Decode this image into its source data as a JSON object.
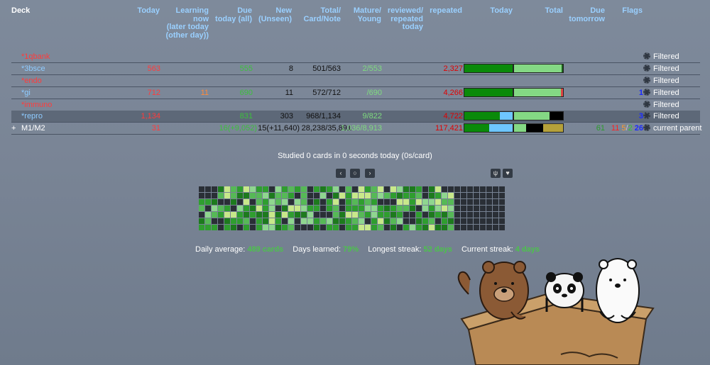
{
  "headers": {
    "deck": "Deck",
    "today": "Today",
    "learning": [
      "Learning",
      "now",
      "(later today",
      "(other day))"
    ],
    "due": [
      "Due",
      "today (all)"
    ],
    "new": [
      "New",
      "(Unseen)"
    ],
    "total": [
      "Total/",
      "Card/Note"
    ],
    "mature": [
      "Mature/",
      "Young"
    ],
    "reviewed": [
      "reviewed/",
      "repeated",
      "today"
    ],
    "repeated": "repeated",
    "today_bar": "Today",
    "total_bar": "Total",
    "due_tomorrow": [
      "Due",
      "tomorrow"
    ],
    "flags": "Flags"
  },
  "decks": [
    {
      "name": "*1qbank",
      "name_color": "#ff3b3b",
      "today": "",
      "learning": "",
      "due": "",
      "new": "",
      "total": "",
      "mature": "",
      "repeated": "",
      "action": "Filtered",
      "bars": false
    },
    {
      "name": "*3bsce",
      "name_color": "#8ecbff",
      "today": "563",
      "learning": "",
      "due": "555",
      "new": "8",
      "total": "501/563",
      "mature": "2/553",
      "repeated": "2,327",
      "action": "Filtered",
      "bars": true,
      "flags": ""
    },
    {
      "name": "*endo",
      "name_color": "#ff3b3b",
      "today": "",
      "learning": "",
      "due": "",
      "new": "",
      "total": "",
      "mature": "",
      "repeated": "",
      "action": "Filtered",
      "bars": false
    },
    {
      "name": "*gi",
      "name_color": "#8ecbff",
      "today": "712",
      "learning": "11",
      "due": "690",
      "new": "11",
      "total": "572/712",
      "mature": "/690",
      "repeated": "4,266",
      "action": "Filtered",
      "bars": true,
      "flags": "1"
    },
    {
      "name": "*immuno",
      "name_color": "#ff3b3b",
      "today": "",
      "learning": "",
      "due": "",
      "new": "",
      "total": "",
      "mature": "",
      "repeated": "",
      "action": "Filtered",
      "bars": false
    },
    {
      "name": "*repro",
      "name_color": "#8ecbff",
      "today": "1,134",
      "learning": "",
      "due": "831",
      "new": "303",
      "total": "968/1,134",
      "mature": "9/822",
      "repeated": "4,722",
      "action": "Filtered",
      "bars": true,
      "flags": "3"
    },
    {
      "name": "M1/M2",
      "name_color": "#ffffff",
      "expander": "+",
      "today": "31",
      "learning": "",
      "due": "16(+9,052)",
      "new": "15(+11,640)",
      "total": "28,238/35,891",
      "mature": "1,036/8,913",
      "repeated": "117,421",
      "tomorrow": "61",
      "flags_multi": [
        "11",
        "5",
        "2",
        "26"
      ],
      "action": "current parent",
      "bars": true
    }
  ],
  "studied": "Studied 0 cards in 0 seconds today (0s/card)",
  "nav_icons": [
    "chevron-left-icon",
    "circle-icon",
    "chevron-right-icon",
    "fork-knife-icon",
    "heart-icon"
  ],
  "stats": {
    "daily_avg_label": "Daily average:",
    "daily_avg_value": "489 cards",
    "days_learned_label": "Days learned:",
    "days_learned_value": "79%",
    "longest_label": "Longest streak:",
    "longest_value": "52 days",
    "current_label": "Current streak:",
    "current_value": "4 days"
  },
  "colors": {
    "accent_header": "#9ad0ff",
    "red": "#ff3b3b",
    "green": "#3cc13c"
  }
}
